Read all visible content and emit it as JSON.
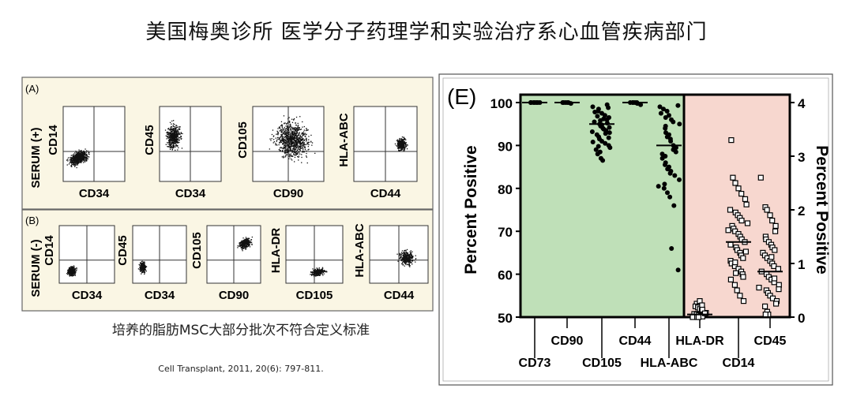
{
  "slide": {
    "title": "美国梅奥诊所 医学分子药理学和实验治疗系心血管疾病部门",
    "caption": "培养的脂肪MSC大部分批次不符合定义标准",
    "citation": "Cell Transplant, 2011, 20(6): 797-811."
  },
  "chart_data": [
    {
      "type": "scatter",
      "panel": "(A)",
      "row_label": "SERUM (+)",
      "plots": [
        {
          "xlabel": "CD34",
          "ylabel": "CD14"
        },
        {
          "xlabel": "CD34",
          "ylabel": "CD45"
        },
        {
          "xlabel": "CD90",
          "ylabel": "CD105"
        },
        {
          "xlabel": "CD44",
          "ylabel": "HLA-ABC"
        }
      ]
    },
    {
      "type": "scatter",
      "panel": "(B)",
      "row_label": "SERUM (-)",
      "plots": [
        {
          "xlabel": "CD34",
          "ylabel": "CD14"
        },
        {
          "xlabel": "CD34",
          "ylabel": "CD45"
        },
        {
          "xlabel": "CD90",
          "ylabel": "CD105"
        },
        {
          "xlabel": "CD105",
          "ylabel": "HLA-DR"
        },
        {
          "xlabel": "CD44",
          "ylabel": "HLA-ABC"
        }
      ]
    },
    {
      "type": "scatter",
      "panel": "(E)",
      "ylabel": "Percent Positive",
      "y2label": "Percent Positive",
      "ylim": [
        50,
        100
      ],
      "yticks": [
        "50",
        "60",
        "70",
        "80",
        "90",
        "100"
      ],
      "y2lim": [
        0,
        4
      ],
      "y2ticks": [
        "0",
        "1",
        "2",
        "3",
        "4"
      ],
      "categories_upper": [
        "CD90",
        "CD44",
        "HLA-DR",
        "CD45"
      ],
      "categories_lower": [
        "CD73",
        "CD105",
        "HLA-ABC",
        "CD14"
      ],
      "regions": [
        {
          "axis": "left",
          "color": "#bfe0b8"
        },
        {
          "axis": "right",
          "color": "#f7d7cf"
        }
      ],
      "series": [
        {
          "marker": "filled-circle",
          "axis": "left",
          "category": "CD73",
          "mean": 100,
          "values": [
            100,
            100,
            100,
            100,
            100,
            100,
            100,
            100
          ]
        },
        {
          "marker": "filled-circle",
          "axis": "left",
          "category": "CD90",
          "mean": 100,
          "values": [
            100,
            100,
            100,
            100,
            100,
            99.8
          ]
        },
        {
          "marker": "filled-circle",
          "axis": "left",
          "category": "CD105",
          "mean": 95,
          "values": [
            99,
            98.5,
            98,
            97.5,
            97,
            96.5,
            96,
            95.5,
            95,
            94.5,
            94,
            93.5,
            93,
            92.5,
            92,
            91.5,
            91,
            90.5,
            90,
            89.5,
            89,
            88,
            87,
            86.5,
            99.5,
            98.8,
            97.8,
            96.8,
            95.8,
            94.8,
            93.8,
            92.8,
            91.8,
            90.8,
            89.8,
            88.5,
            96.2,
            95.2,
            94.2,
            93.2
          ]
        },
        {
          "marker": "filled-circle",
          "axis": "left",
          "category": "CD44",
          "mean": 100,
          "values": [
            100,
            100,
            100,
            100,
            100,
            99.8,
            99.5
          ]
        },
        {
          "marker": "filled-circle",
          "axis": "left",
          "category": "HLA-ABC",
          "mean": 90,
          "values": [
            99,
            98.5,
            98,
            97,
            96,
            95.5,
            95,
            94,
            93,
            92,
            91,
            90,
            89,
            88,
            87,
            86,
            85,
            84,
            83,
            82,
            81,
            80,
            79,
            78,
            76,
            99.3,
            97.5,
            96.5,
            94.5,
            92.5,
            91.5,
            89.5,
            88.5,
            87.5,
            85.5,
            84.5,
            83.5,
            66,
            61,
            80.5
          ]
        },
        {
          "marker": "open-square",
          "axis": "right",
          "category": "HLA-DR",
          "mean": 0.05,
          "values": [
            0.25,
            0.2,
            0.18,
            0.15,
            0.12,
            0.1,
            0.08,
            0.06,
            0.05,
            0.04,
            0.03,
            0.02,
            0.01,
            0,
            0,
            0,
            0.3,
            0.22,
            0.14,
            0.07
          ]
        },
        {
          "marker": "open-square",
          "axis": "right",
          "category": "CD14",
          "mean": 1.4,
          "values": [
            3.3,
            2.6,
            2.5,
            2.4,
            2.3,
            2.2,
            2.1,
            2.0,
            1.95,
            1.9,
            1.85,
            1.8,
            1.75,
            1.7,
            1.65,
            1.6,
            1.55,
            1.5,
            1.45,
            1.4,
            1.35,
            1.3,
            1.25,
            1.2,
            1.15,
            1.1,
            1.05,
            1.0,
            0.95,
            0.9,
            0.85,
            0.8,
            0.75,
            0.7,
            0.6,
            0.5,
            0.4,
            0.3,
            1.22,
            1.62,
            1.02,
            0.82
          ]
        },
        {
          "marker": "open-square",
          "axis": "right",
          "category": "CD45",
          "mean": 0.85,
          "values": [
            2.6,
            2.05,
            2.0,
            1.9,
            1.8,
            1.7,
            1.6,
            1.5,
            1.45,
            1.4,
            1.35,
            1.3,
            1.25,
            1.2,
            1.15,
            1.1,
            1.05,
            1.0,
            0.95,
            0.9,
            0.85,
            0.8,
            0.75,
            0.7,
            0.65,
            0.6,
            0.55,
            0.5,
            0.45,
            0.4,
            0.35,
            0.3,
            0.25,
            0.2,
            0.1,
            0.05,
            1.12,
            0.72,
            0.52,
            0.05
          ]
        }
      ]
    }
  ]
}
